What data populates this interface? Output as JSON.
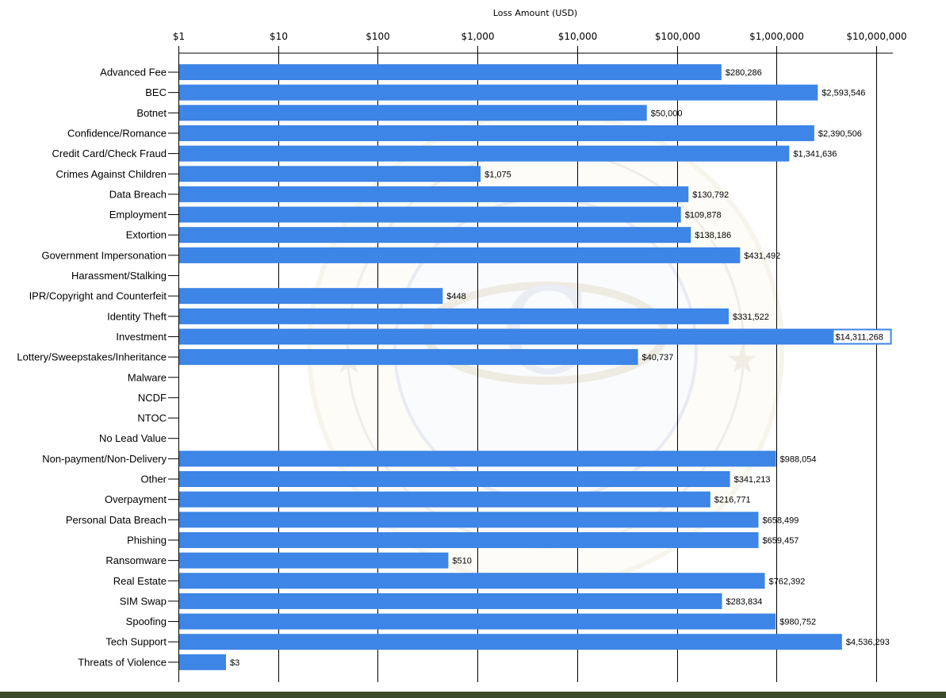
{
  "chart_data": {
    "type": "bar",
    "orientation": "horizontal",
    "title": "",
    "xlabel": "Loss Amount (USD)",
    "ylabel": "",
    "xscale": "log",
    "xlim": [
      1,
      10000000
    ],
    "xticks": [
      {
        "value": 1,
        "label": "$1"
      },
      {
        "value": 10,
        "label": "$10"
      },
      {
        "value": 100,
        "label": "$100"
      },
      {
        "value": 1000,
        "label": "$1,000"
      },
      {
        "value": 10000,
        "label": "$10,000"
      },
      {
        "value": 100000,
        "label": "$100,000"
      },
      {
        "value": 1000000,
        "label": "$1,000,000"
      },
      {
        "value": 10000000,
        "label": "$10,000,000"
      }
    ],
    "grid": true,
    "categories": [
      "Advanced Fee",
      "BEC",
      "Botnet",
      "Confidence/Romance",
      "Credit Card/Check Fraud",
      "Crimes Against Children",
      "Data Breach",
      "Employment",
      "Extortion",
      "Government Impersonation",
      "Harassment/Stalking",
      "IPR/Copyright and Counterfeit",
      "Identity Theft",
      "Investment",
      "Lottery/Sweepstakes/Inheritance",
      "Malware",
      "NCDF",
      "NTOC",
      "No Lead Value",
      "Non-payment/Non-Delivery",
      "Other",
      "Overpayment",
      "Personal Data Breach",
      "Phishing",
      "Ransomware",
      "Real Estate",
      "SIM Swap",
      "Spoofing",
      "Tech Support",
      "Threats of Violence"
    ],
    "values": [
      280286,
      2593546,
      50000,
      2390506,
      1341636,
      1075,
      130792,
      109878,
      138186,
      431492,
      null,
      448,
      331522,
      14311268,
      40737,
      null,
      null,
      null,
      null,
      988054,
      341213,
      216771,
      658499,
      659457,
      510,
      762392,
      283834,
      980752,
      4536293,
      3
    ],
    "value_labels": [
      "$280,286",
      "$2,593,546",
      "$50,000",
      "$2,390,506",
      "$1,341,636",
      "$1,075",
      "$130,792",
      "$109,878",
      "$138,186",
      "$431,492",
      "",
      "$448",
      "$331,522",
      "$14,311,268",
      "$40,737",
      "",
      "",
      "",
      "",
      "$988,054",
      "$341,213",
      "$216,771",
      "$658,499",
      "$659,457",
      "$510",
      "$762,392",
      "$283,834",
      "$980,752",
      "$4,536,293",
      "$3"
    ],
    "bar_color": "#3d85e6",
    "grid_color": "#000000",
    "watermark": "FEDERAL BUREAU OF INVESTIGATION - INTERNET CRIME COMPLAINT CENTER seal"
  }
}
